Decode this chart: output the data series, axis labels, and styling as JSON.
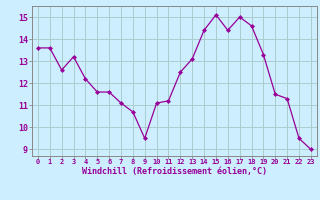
{
  "x": [
    0,
    1,
    2,
    3,
    4,
    5,
    6,
    7,
    8,
    9,
    10,
    11,
    12,
    13,
    14,
    15,
    16,
    17,
    18,
    19,
    20,
    21,
    22,
    23
  ],
  "y": [
    13.6,
    13.6,
    12.6,
    13.2,
    12.2,
    11.6,
    11.6,
    11.1,
    10.7,
    9.5,
    11.1,
    11.2,
    12.5,
    13.1,
    14.4,
    15.1,
    14.4,
    15.0,
    14.6,
    13.3,
    11.5,
    11.3,
    9.5,
    9.0
  ],
  "line_color": "#990099",
  "marker": "D",
  "marker_size": 2.0,
  "bg_color": "#cceeff",
  "grid_color": "#aacccc",
  "xlabel": "Windchill (Refroidissement éolien,°C)",
  "xlabel_color": "#990099",
  "tick_color": "#990099",
  "spine_color": "#888888",
  "ylim": [
    8.7,
    15.5
  ],
  "yticks": [
    9,
    10,
    11,
    12,
    13,
    14,
    15
  ],
  "xlim": [
    -0.5,
    23.5
  ]
}
